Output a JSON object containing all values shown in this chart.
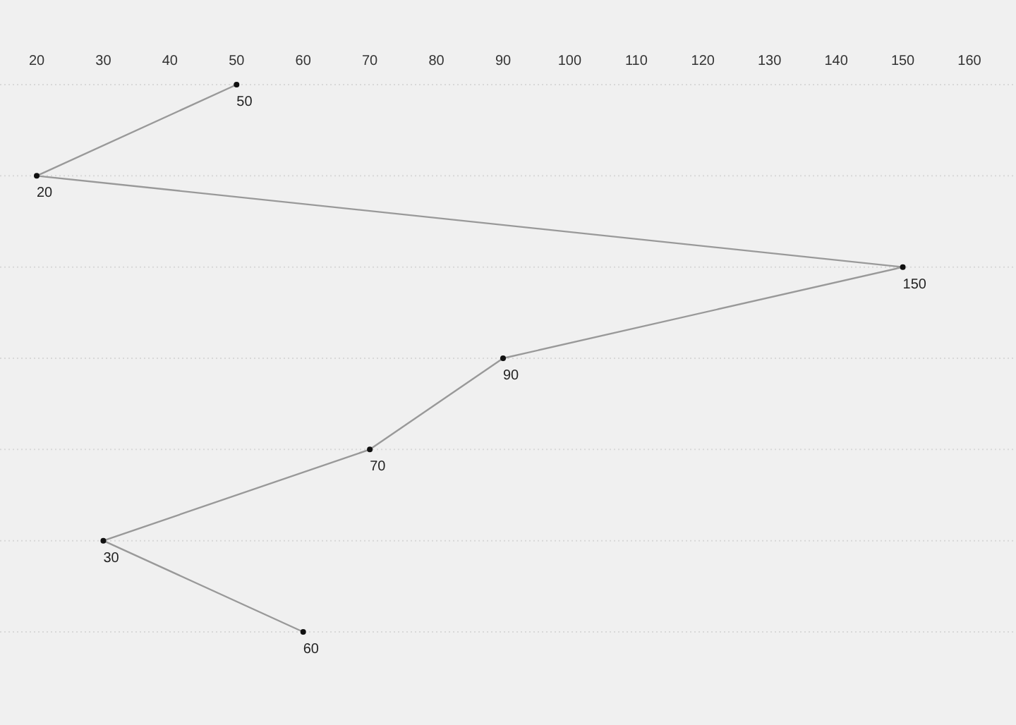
{
  "chart_data": {
    "type": "line",
    "orientation": "horizontal",
    "categories": [
      null,
      null,
      null,
      null,
      null,
      null,
      null
    ],
    "values": [
      50,
      20,
      150,
      90,
      70,
      30,
      60
    ],
    "color": "#999999",
    "xlim": [
      20,
      160
    ],
    "xticks": [
      20,
      30,
      40,
      50,
      60,
      70,
      80,
      90,
      100,
      110,
      120,
      130,
      140,
      150,
      160
    ],
    "grid": "y",
    "marker": "circle",
    "data_labels": true,
    "tick_labels": "x"
  }
}
